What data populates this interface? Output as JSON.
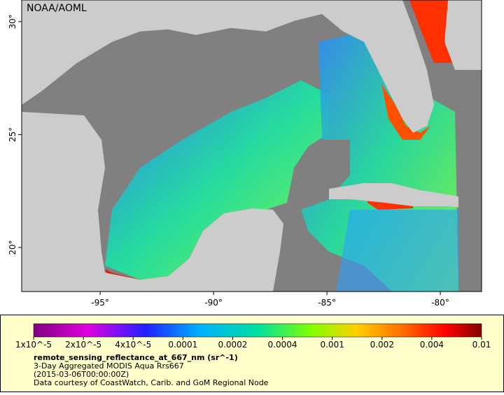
{
  "watermark": "NOAA/AOML",
  "map": {
    "xlim": [
      -98.46,
      -78.18
    ],
    "ylim": [
      18.05,
      30.96
    ],
    "xticks": [
      {
        "value": -95,
        "label": "-95°"
      },
      {
        "value": -90,
        "label": "-90°"
      },
      {
        "value": -85,
        "label": "-85°"
      },
      {
        "value": -80,
        "label": "-80°"
      }
    ],
    "yticks": [
      {
        "value": 20,
        "label": "20°"
      },
      {
        "value": 25,
        "label": "25°"
      },
      {
        "value": 30,
        "label": "30°"
      }
    ]
  },
  "legend": {
    "colorbar_ticks": [
      {
        "value": 1e-05,
        "label": "1x10^-5"
      },
      {
        "value": 2e-05,
        "label": "2x10^-5"
      },
      {
        "value": 4e-05,
        "label": "4x10^-5"
      },
      0.0001,
      0.0002,
      0.0004,
      0.001,
      0.002,
      0.004,
      0.01
    ],
    "variable": "remote_sensing_reflectance_at_667_nm (sr^-1)",
    "lines": [
      "3-Day Aggregated MODIS Aqua Rrs667",
      "(2015-03-06T00:00:00Z)",
      "Data courtesy of CoastWatch, Carib. and GoM Regional Node"
    ]
  }
}
